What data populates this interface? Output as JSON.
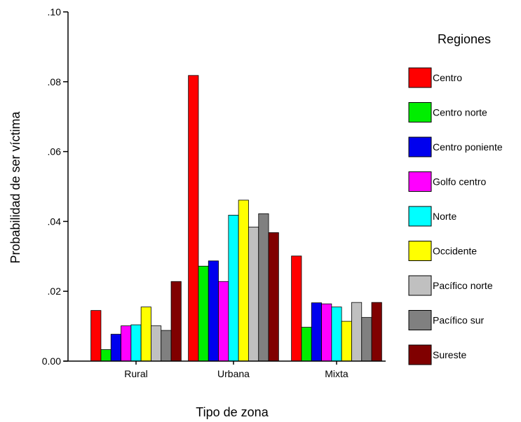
{
  "chart_data": {
    "type": "bar",
    "xlabel": "Tipo de zona",
    "ylabel": "Probabilidad de ser víctima",
    "ylim": [
      0,
      0.1
    ],
    "yticks": [
      ".10",
      ".08",
      ".06",
      ".04",
      ".02",
      "0.00"
    ],
    "ytick_values": [
      0.1,
      0.08,
      0.06,
      0.04,
      0.02,
      0.0
    ],
    "categories": [
      "Rural",
      "Urbana",
      "Mixta"
    ],
    "legend_title": "Regiones",
    "legend_position": "right",
    "grid": false,
    "series": [
      {
        "name": "Centro",
        "color": "#ff0000",
        "values": [
          0.0145,
          0.0818,
          0.0301
        ]
      },
      {
        "name": "Centro norte",
        "color": "#00ee00",
        "values": [
          0.0033,
          0.0272,
          0.0097
        ]
      },
      {
        "name": "Centro poniente",
        "color": "#0000ee",
        "values": [
          0.0077,
          0.0287,
          0.0167
        ]
      },
      {
        "name": "Golfo centro",
        "color": "#ff00ff",
        "values": [
          0.0101,
          0.0228,
          0.0164
        ]
      },
      {
        "name": "Norte",
        "color": "#00ffff",
        "values": [
          0.0104,
          0.0418,
          0.0155
        ]
      },
      {
        "name": "Occidente",
        "color": "#ffff00",
        "values": [
          0.0155,
          0.0461,
          0.0114
        ]
      },
      {
        "name": "Pacífico norte",
        "color": "#c0c0c0",
        "values": [
          0.0101,
          0.0384,
          0.0168
        ]
      },
      {
        "name": "Pacífico sur",
        "color": "#808080",
        "values": [
          0.0088,
          0.0422,
          0.0125
        ]
      },
      {
        "name": "Sureste",
        "color": "#800000",
        "values": [
          0.0228,
          0.0368,
          0.0168
        ]
      }
    ]
  }
}
